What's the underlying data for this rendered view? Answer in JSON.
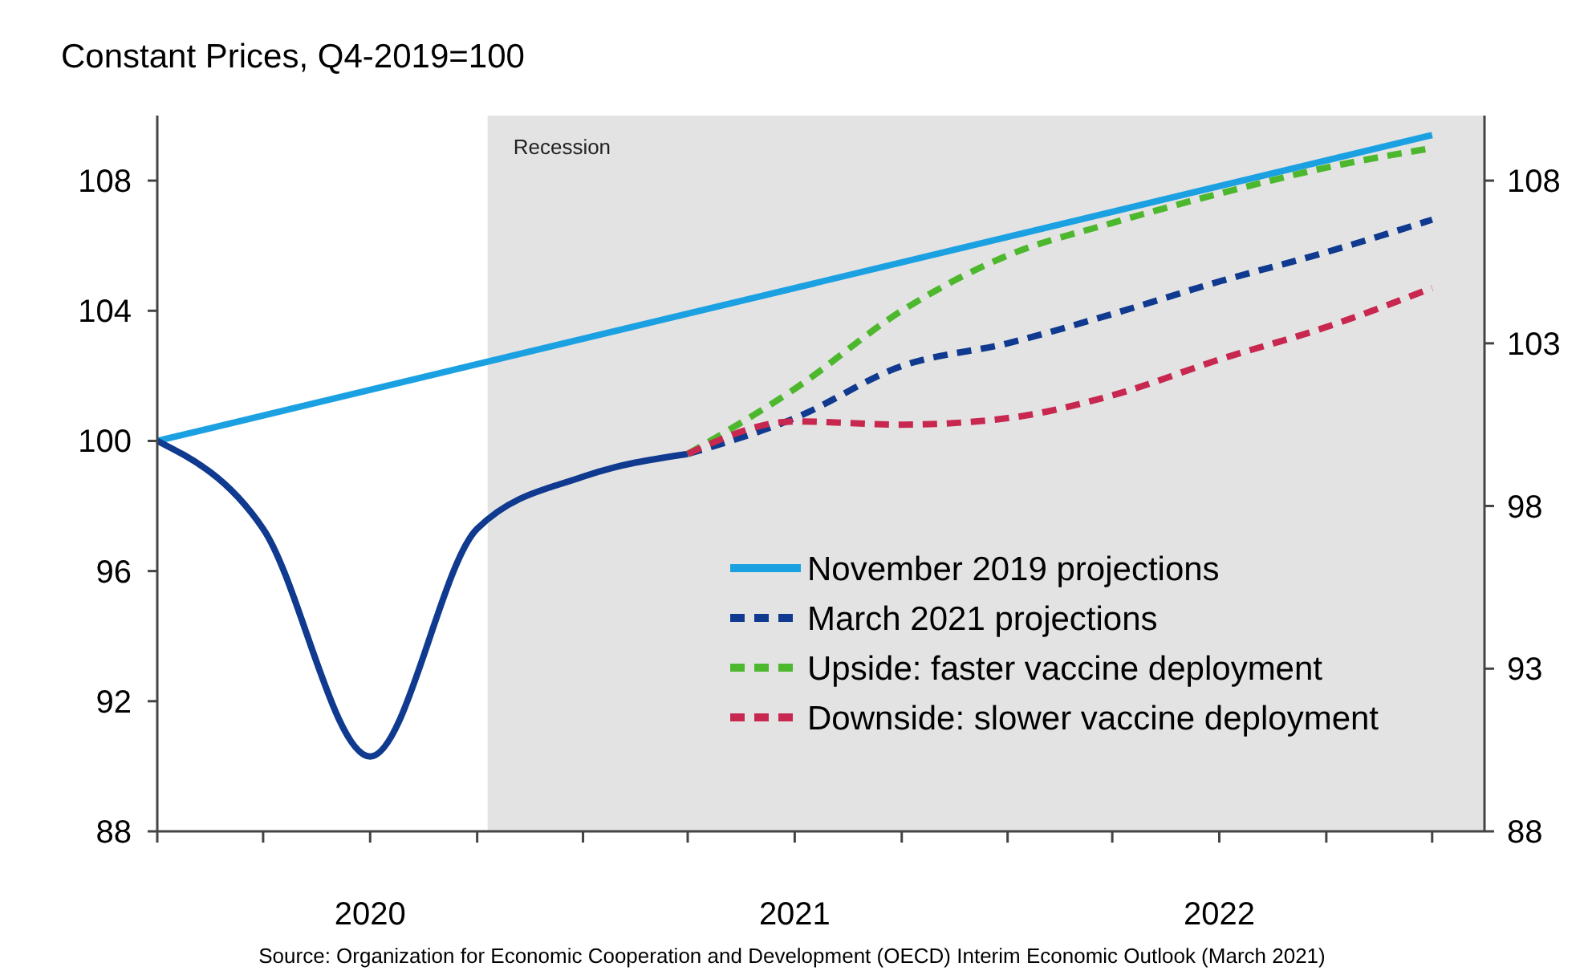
{
  "chart_data": {
    "type": "line",
    "title": "Constant Prices, Q4-2019=100",
    "xlim": [
      "2019-12",
      "2023-01-15"
    ],
    "xticks": [
      {
        "value": "2019-12",
        "label": null
      },
      {
        "value": "2020-03",
        "label": null
      },
      {
        "value": "2020-06",
        "label": "2020"
      },
      {
        "value": "2020-09",
        "label": null
      },
      {
        "value": "2020-12",
        "label": null
      },
      {
        "value": "2021-03",
        "label": null
      },
      {
        "value": "2021-06",
        "label": "2021"
      },
      {
        "value": "2021-09",
        "label": null
      },
      {
        "value": "2021-12",
        "label": null
      },
      {
        "value": "2022-03",
        "label": null
      },
      {
        "value": "2022-06",
        "label": "2022"
      },
      {
        "value": "2022-09",
        "label": null
      },
      {
        "value": "2022-12",
        "label": null
      }
    ],
    "ylim": [
      88,
      110
    ],
    "yticks": [
      88,
      92,
      96,
      100,
      104,
      108
    ],
    "y2lim": [
      88,
      110
    ],
    "y2ticks": [
      88,
      93,
      98,
      103,
      108
    ],
    "series": [
      {
        "name": "November 2019 projections",
        "color": "#1ba1e2",
        "x": [
          "2019-12",
          "2022-12"
        ],
        "values": [
          100,
          109.4
        ],
        "line_style": "solid"
      },
      {
        "color": "#0f3a8f",
        "x": [
          "2019-12",
          "2020-03",
          "2020-06",
          "2020-09",
          "2020-12",
          "2021-03"
        ],
        "values": [
          100,
          97.3,
          90.3,
          97.3,
          98.9,
          99.6
        ],
        "line_style": "solid"
      },
      {
        "name": "March 2021 projections",
        "color": "#0f3a8f",
        "x": [
          "2021-03",
          "2021-06",
          "2021-09",
          "2021-12",
          "2022-03",
          "2022-06",
          "2022-09",
          "2022-12"
        ],
        "values": [
          99.6,
          100.7,
          102.3,
          103.0,
          103.9,
          104.9,
          105.8,
          106.8
        ],
        "line_style": "dashed"
      },
      {
        "name": "Upside: faster vaccine deployment",
        "color": "#4db82e",
        "x": [
          "2021-03",
          "2021-06",
          "2021-09",
          "2021-12",
          "2022-03",
          "2022-06",
          "2022-09",
          "2022-12"
        ],
        "values": [
          99.6,
          101.6,
          104.0,
          105.7,
          106.7,
          107.6,
          108.4,
          109.0
        ],
        "line_style": "dashed"
      },
      {
        "name": "Downside: slower vaccine deployment",
        "color": "#c8284f",
        "x": [
          "2021-03",
          "2021-06",
          "2021-09",
          "2021-12",
          "2022-03",
          "2022-06",
          "2022-09",
          "2022-12"
        ],
        "values": [
          99.6,
          100.6,
          100.5,
          100.7,
          101.4,
          102.5,
          103.5,
          104.7
        ],
        "line_style": "dashed"
      }
    ],
    "bands": [
      {
        "axis": "x",
        "from": "2020-09-10",
        "to": "2023-01-15",
        "label": "Recession",
        "color": "#e3e3e3"
      }
    ],
    "legend": "bottom right",
    "grid": false,
    "annotations": [
      "Source: Organization for Economic Cooperation and Development (OECD) Interim Economic Outlook (March 2021)"
    ]
  }
}
